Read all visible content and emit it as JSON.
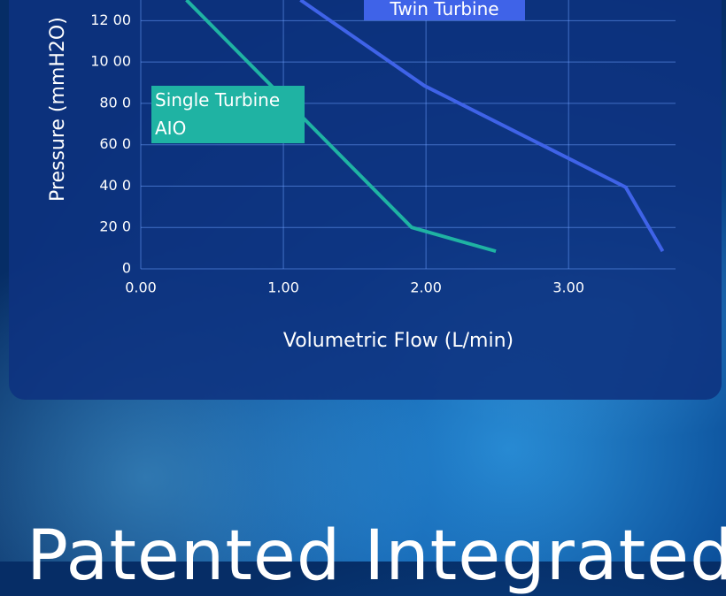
{
  "chart_data": {
    "type": "line",
    "x_label": "Volumetric Flow (L/min)",
    "y_label": "Pressure (mmH2O)",
    "xlim": [
      0,
      3.75
    ],
    "xticks": [
      {
        "value": 0,
        "label": "0.00"
      },
      {
        "value": 1,
        "label": "1.00"
      },
      {
        "value": 2,
        "label": "2.00"
      },
      {
        "value": 3,
        "label": "3.00"
      }
    ],
    "ylim": [
      0,
      1300
    ],
    "yticks": [
      0,
      {
        "value": 200,
        "label": "20 0"
      },
      {
        "value": 400,
        "label": "40 0"
      },
      {
        "value": 600,
        "label": "60 0"
      },
      {
        "value": 800,
        "label": "80 0"
      },
      {
        "value": 1000,
        "label": "10 00"
      },
      {
        "value": 1200,
        "label": "12 00"
      }
    ],
    "grid": true,
    "series": [
      {
        "name": "Single Turbine AIO",
        "color": "#1fb3a3",
        "x": [
          0.32,
          1.9,
          2.49
        ],
        "values": [
          1300,
          200,
          85
        ]
      },
      {
        "name": "Twin Turbine",
        "color": "#3f63e8",
        "x": [
          1.12,
          1.99,
          3.4,
          3.66
        ],
        "values": [
          1300,
          885,
          395,
          85
        ]
      }
    ]
  },
  "heading": "Patented Integrated"
}
